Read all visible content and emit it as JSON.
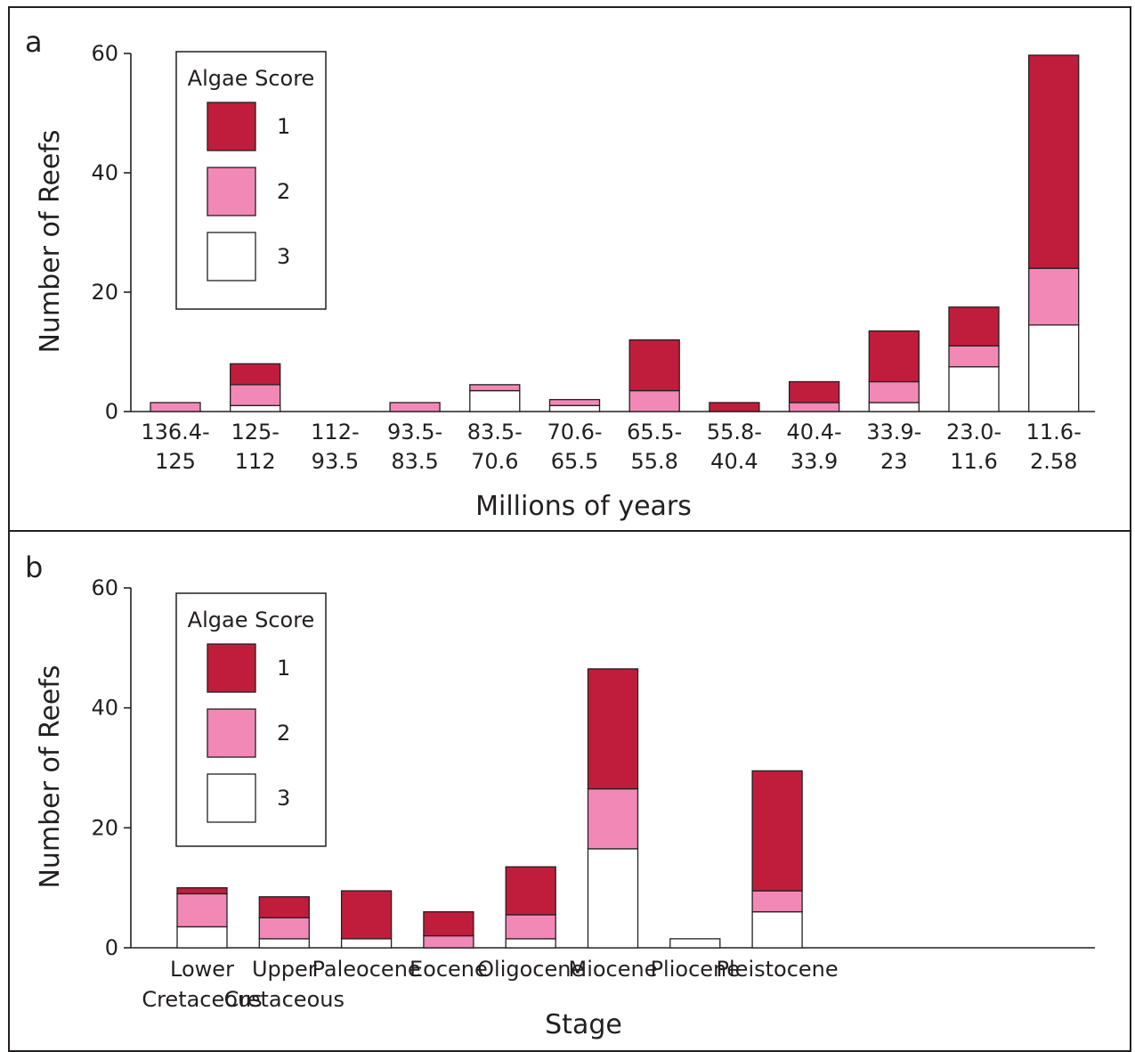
{
  "chart_data": [
    {
      "type": "bar",
      "stacked": true,
      "panel_label": "a",
      "xlabel": "Millions of years",
      "ylabel": "Number of Reefs",
      "ylim": [
        0,
        60
      ],
      "yticks": [
        0,
        20,
        40,
        60
      ],
      "categories": [
        [
          "136.4-",
          "125"
        ],
        [
          "125-",
          "112"
        ],
        [
          "112-",
          "93.5"
        ],
        [
          "93.5-",
          "83.5"
        ],
        [
          "83.5-",
          "70.6"
        ],
        [
          "70.6-",
          "65.5"
        ],
        [
          "65.5-",
          "55.8"
        ],
        [
          "55.8-",
          "40.4"
        ],
        [
          "40.4-",
          "33.9"
        ],
        [
          "33.9-",
          "23"
        ],
        [
          "23.0-",
          "11.6"
        ],
        [
          "11.6-",
          "2.58"
        ]
      ],
      "legend": {
        "title": "Algae Score",
        "position": "top-left"
      },
      "series": [
        {
          "name": "3",
          "color": "#ffffff",
          "values": [
            0,
            1,
            0,
            0,
            3.5,
            1,
            0,
            0,
            0,
            1.5,
            7.5,
            14.5
          ]
        },
        {
          "name": "2",
          "color": "#f288b6",
          "values": [
            1.5,
            3.5,
            0,
            1.5,
            1,
            1,
            3.5,
            0,
            1.5,
            3.5,
            3.5,
            9.5
          ]
        },
        {
          "name": "1",
          "color": "#c01d3d",
          "values": [
            0,
            3.5,
            0,
            0,
            0,
            0,
            8.5,
            1.5,
            3.5,
            8.5,
            6.5,
            35.7
          ]
        }
      ]
    },
    {
      "type": "bar",
      "stacked": true,
      "panel_label": "b",
      "xlabel": "Stage",
      "ylabel": "Number of Reefs",
      "ylim": [
        0,
        60
      ],
      "yticks": [
        0,
        20,
        40,
        60
      ],
      "categories": [
        [
          "Lower",
          "Cretaceous"
        ],
        [
          "Upper",
          "Cretaceous"
        ],
        [
          "Paleocene"
        ],
        [
          "Eocene"
        ],
        [
          "Oligocene"
        ],
        [
          "Miocene"
        ],
        [
          "Pliocene"
        ],
        [
          "Pleistocene"
        ]
      ],
      "legend": {
        "title": "Algae Score",
        "position": "top-left"
      },
      "series": [
        {
          "name": "3",
          "color": "#ffffff",
          "values": [
            3.5,
            1.5,
            1.5,
            0,
            1.5,
            16.5,
            1.5,
            6
          ]
        },
        {
          "name": "2",
          "color": "#f288b6",
          "values": [
            5.5,
            3.5,
            0,
            2,
            4,
            10,
            0,
            3.5
          ]
        },
        {
          "name": "1",
          "color": "#c01d3d",
          "values": [
            1,
            3.5,
            8,
            4,
            8,
            20,
            0,
            20
          ]
        }
      ]
    }
  ]
}
